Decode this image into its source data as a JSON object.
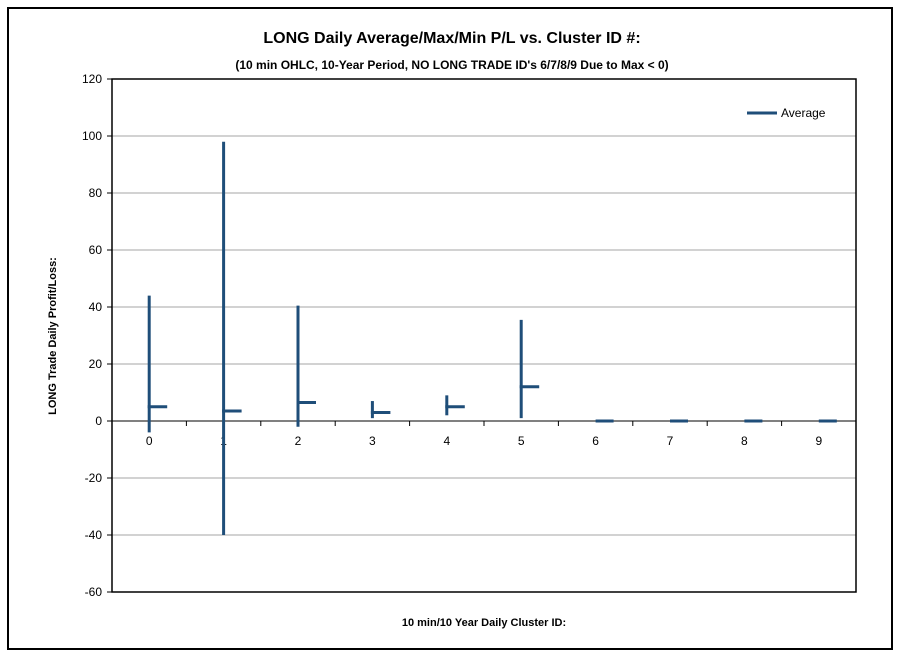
{
  "chart_data": {
    "type": "line",
    "title": "LONG Daily Average/Max/Min P/L vs. Cluster ID #:",
    "subtitle": "(10 min OHLC, 10-Year Period, NO LONG TRADE ID's 6/7/8/9 Due to Max < 0)",
    "xlabel": "10 min/10 Year Daily Cluster ID:",
    "ylabel": "LONG Trade Daily Profit/Loss:",
    "categories": [
      "0",
      "1",
      "2",
      "3",
      "4",
      "5",
      "6",
      "7",
      "8",
      "9"
    ],
    "series": [
      {
        "name": "Average",
        "color": "#1f4e79",
        "high": [
          44,
          98,
          40.5,
          7,
          9,
          35.5,
          0,
          0,
          0,
          0
        ],
        "low": [
          -4,
          -40,
          -2,
          1,
          2,
          1,
          0,
          0,
          0,
          0
        ],
        "values": [
          5,
          3.5,
          6.5,
          3,
          5,
          12,
          0,
          0,
          0,
          0
        ]
      }
    ],
    "ylim": [
      -60,
      120
    ],
    "yticks": [
      -60,
      -40,
      -20,
      0,
      20,
      40,
      60,
      80,
      100,
      120
    ],
    "grid": true,
    "legend": "top-right"
  }
}
